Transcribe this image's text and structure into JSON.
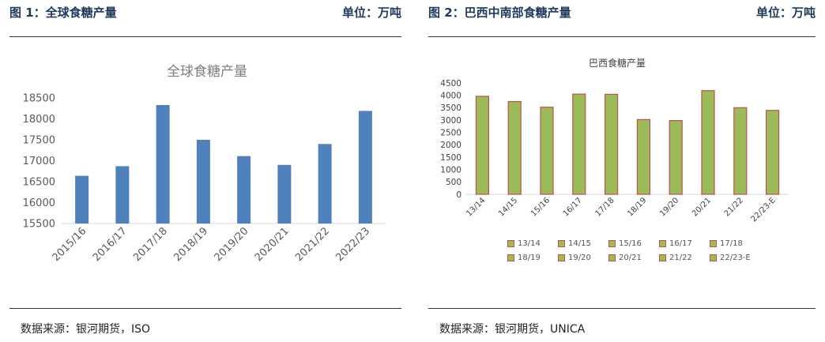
{
  "left_figure": {
    "title": "图 1：全球食糖产量",
    "unit": "单位：万吨",
    "source": "数据来源：银河期货，ISO"
  },
  "right_figure": {
    "title": "图 2：巴西中南部食糖产量",
    "unit": "单位：万吨",
    "source": "数据来源：银河期货，UNICA"
  },
  "chart_data": [
    {
      "type": "bar",
      "title": "全球食糖产量",
      "categories": [
        "2015/16",
        "2016/17",
        "2017/18",
        "2018/19",
        "2019/20",
        "2020/21",
        "2021/22",
        "2022/23"
      ],
      "values": [
        16640,
        16870,
        18330,
        17500,
        17110,
        16900,
        17400,
        18190
      ],
      "yticks": [
        15500,
        16000,
        16500,
        17000,
        17500,
        18000,
        18500
      ],
      "ylim": [
        15500,
        18500
      ],
      "grid": false,
      "legend": "none",
      "colors": {
        "bar": "#4f81bd",
        "axis": "#d9d9d9",
        "title": "#7f7f7f",
        "tick": "#595959"
      }
    },
    {
      "type": "bar",
      "title": "巴西食糖产量",
      "categories": [
        "13/14",
        "14/15",
        "15/16",
        "16/17",
        "17/18",
        "18/19",
        "19/20",
        "20/21",
        "21/22",
        "22/23-E"
      ],
      "values": [
        3960,
        3750,
        3520,
        4050,
        4040,
        3020,
        2980,
        4190,
        3500,
        3390
      ],
      "yticks": [
        0,
        500,
        1000,
        1500,
        2000,
        2500,
        3000,
        3500,
        4000,
        4500
      ],
      "ylim": [
        0,
        4500
      ],
      "grid": false,
      "legend": "bottom",
      "colors": {
        "bar": "#9bbb59",
        "border": "#c0504d",
        "axis": "#d9d9d9",
        "title": "#404040",
        "tick": "#404040"
      }
    }
  ]
}
